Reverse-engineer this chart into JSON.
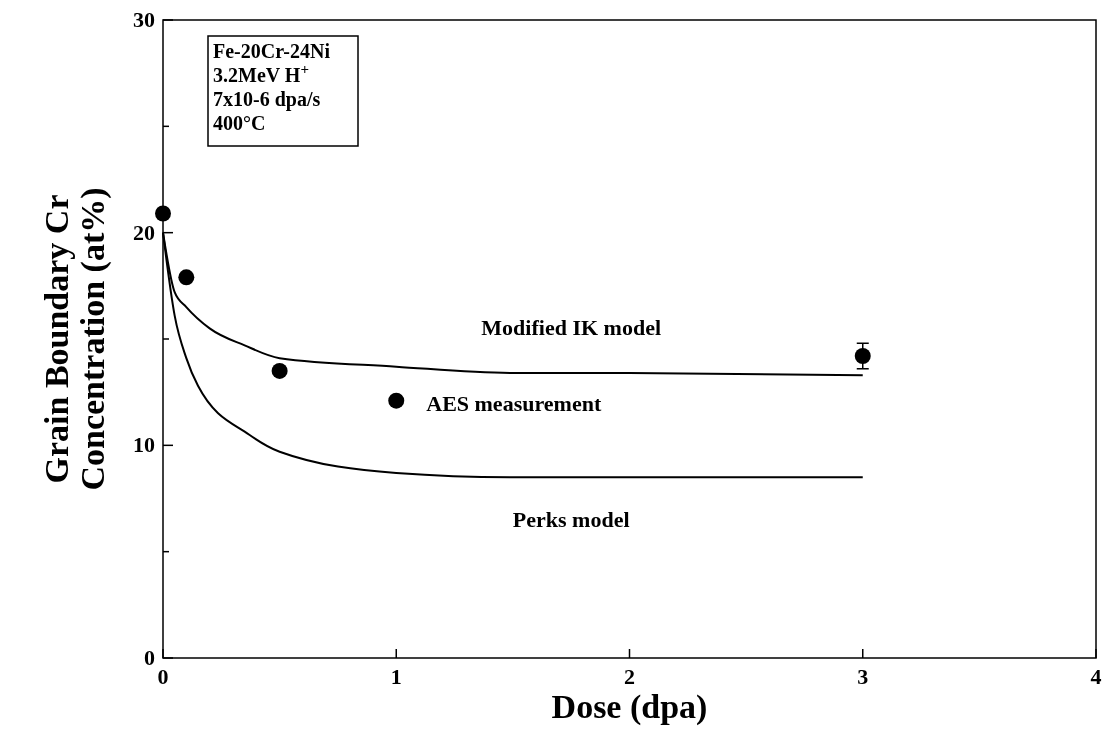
{
  "chart_data": {
    "type": "line",
    "xlabel": "Dose (dpa)",
    "ylabel": "Grain Boundary Cr\nConcentration (at%)",
    "xlim": [
      0,
      4
    ],
    "xticks": [
      0,
      1,
      2,
      3,
      4
    ],
    "ylim": [
      0,
      30
    ],
    "yticks": [
      0,
      {
        "value": 5,
        "label": null
      },
      10,
      {
        "value": 15,
        "label": null
      },
      20,
      {
        "value": 25,
        "label": null
      },
      30
    ],
    "annotations": [
      "Fe-20Cr-24Ni",
      "3.2MeV H$^{+}$",
      "7x10-6 dpa/s",
      "400°C"
    ],
    "grid": false,
    "series": [
      {
        "name": "Modified IK model",
        "color": "#000000",
        "x": [
          0,
          0.05,
          0.1,
          0.2,
          0.35,
          0.5,
          1,
          1.5,
          2,
          3
        ],
        "values": [
          20,
          17.2,
          16.5,
          15.5,
          14.7,
          14.1,
          13.7,
          13.4,
          13.4,
          13.3
        ]
      },
      {
        "name": "Perks model",
        "color": "#000000",
        "x": [
          0,
          0.05,
          0.1,
          0.15,
          0.37,
          0.5,
          1,
          1.5,
          2,
          3
        ],
        "values": [
          20,
          16.1,
          14.1,
          12.8,
          10.5,
          9.7,
          8.7,
          8.5,
          8.5,
          8.5
        ]
      },
      {
        "name": "AES measurement",
        "type": "scatter",
        "marker": "circle",
        "color": "#000000",
        "x": [
          0,
          0.1,
          0.5,
          1,
          3
        ],
        "values": [
          20.9,
          17.9,
          13.5,
          12.1,
          14.2
        ],
        "errors": [
          null,
          null,
          null,
          null,
          0.6
        ]
      }
    ]
  }
}
